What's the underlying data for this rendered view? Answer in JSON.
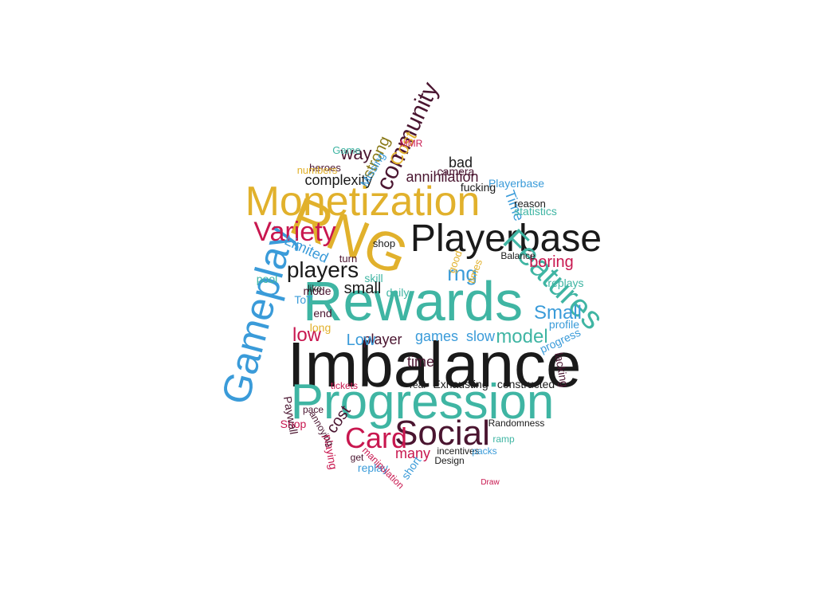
{
  "palette": {
    "black": "#1a1a1a",
    "teal": "#3fb5a3",
    "gold": "#e1b12c",
    "crimson": "#c8174f",
    "blue": "#3a9bd9",
    "olive": "#8a7a1a",
    "maroon": "#4a1530"
  },
  "word_cloud": {
    "words": [
      {
        "text": "Imbalance",
        "color": "black"
      },
      {
        "text": "Rewards",
        "color": "teal"
      },
      {
        "text": "Progression",
        "color": "teal"
      },
      {
        "text": "RNG",
        "color": "gold"
      },
      {
        "text": "Monetization",
        "color": "gold"
      },
      {
        "text": "Playerbase",
        "color": "black"
      },
      {
        "text": "Gameplay",
        "color": "blue"
      },
      {
        "text": "Features",
        "color": "teal"
      },
      {
        "text": "Social",
        "color": "maroon"
      },
      {
        "text": "Card",
        "color": "crimson"
      },
      {
        "text": "Variety",
        "color": "crimson"
      },
      {
        "text": "community",
        "color": "maroon"
      },
      {
        "text": "players",
        "color": "black"
      },
      {
        "text": "rng",
        "color": "blue"
      },
      {
        "text": "model",
        "color": "teal"
      },
      {
        "text": "Small",
        "color": "blue"
      },
      {
        "text": "low",
        "color": "crimson"
      },
      {
        "text": "Cost",
        "color": "gold"
      },
      {
        "text": "Time",
        "color": "blue"
      },
      {
        "text": "way",
        "color": "maroon"
      },
      {
        "text": "small",
        "color": "black"
      },
      {
        "text": "strong",
        "color": "olive"
      },
      {
        "text": "boring",
        "color": "crimson"
      },
      {
        "text": "Limited",
        "color": "blue"
      },
      {
        "text": "complexity",
        "color": "black"
      },
      {
        "text": "annihilation",
        "color": "maroon"
      },
      {
        "text": "games",
        "color": "blue"
      },
      {
        "text": "slow",
        "color": "blue"
      },
      {
        "text": "player",
        "color": "maroon"
      },
      {
        "text": "Low",
        "color": "blue"
      },
      {
        "text": "time",
        "color": "maroon"
      },
      {
        "text": "cost",
        "color": "maroon"
      },
      {
        "text": "many",
        "color": "crimson"
      },
      {
        "text": "bad",
        "color": "black"
      },
      {
        "text": "Missing",
        "color": "blue"
      },
      {
        "text": "Playerbase",
        "color": "blue"
      },
      {
        "text": "fucking",
        "color": "black"
      },
      {
        "text": "camera",
        "color": "maroon"
      },
      {
        "text": "replay",
        "color": "blue"
      },
      {
        "text": "short",
        "color": "blue"
      },
      {
        "text": "Shop",
        "color": "crimson"
      },
      {
        "text": "playing",
        "color": "crimson"
      },
      {
        "text": "constructed",
        "color": "black"
      },
      {
        "text": "Exhausting",
        "color": "black"
      },
      {
        "text": "Paywall",
        "color": "maroon"
      },
      {
        "text": "lacking",
        "color": "maroon"
      },
      {
        "text": "progress",
        "color": "blue"
      },
      {
        "text": "profile",
        "color": "blue"
      },
      {
        "text": "replays",
        "color": "teal"
      },
      {
        "text": "statistics",
        "color": "teal"
      },
      {
        "text": "Game",
        "color": "teal"
      },
      {
        "text": "heroes",
        "color": "maroon"
      },
      {
        "text": "numbers",
        "color": "gold"
      },
      {
        "text": "mode",
        "color": "maroon"
      },
      {
        "text": "pool",
        "color": "teal"
      },
      {
        "text": "end",
        "color": "maroon"
      },
      {
        "text": "long",
        "color": "gold"
      },
      {
        "text": "ToT",
        "color": "blue"
      },
      {
        "text": "skill",
        "color": "teal"
      },
      {
        "text": "daily",
        "color": "teal"
      },
      {
        "text": "shop",
        "color": "black"
      },
      {
        "text": "turn",
        "color": "maroon"
      },
      {
        "text": "good",
        "color": "gold"
      },
      {
        "text": "times",
        "color": "gold"
      },
      {
        "text": "Balance",
        "color": "black"
      },
      {
        "text": "reason",
        "color": "black"
      },
      {
        "text": "Randomness",
        "color": "black"
      },
      {
        "text": "Design",
        "color": "black"
      },
      {
        "text": "incentives",
        "color": "black"
      },
      {
        "text": "manipulation",
        "color": "crimson"
      },
      {
        "text": "packs",
        "color": "blue"
      },
      {
        "text": "ramp",
        "color": "teal"
      },
      {
        "text": "get",
        "color": "maroon"
      },
      {
        "text": "annoying",
        "color": "maroon"
      },
      {
        "text": "pace",
        "color": "maroon"
      },
      {
        "text": "tickets",
        "color": "crimson"
      },
      {
        "text": "real",
        "color": "black"
      },
      {
        "text": "MMR",
        "color": "crimson"
      },
      {
        "text": "like",
        "color": "black"
      },
      {
        "text": "Draw",
        "color": "crimson"
      }
    ]
  }
}
